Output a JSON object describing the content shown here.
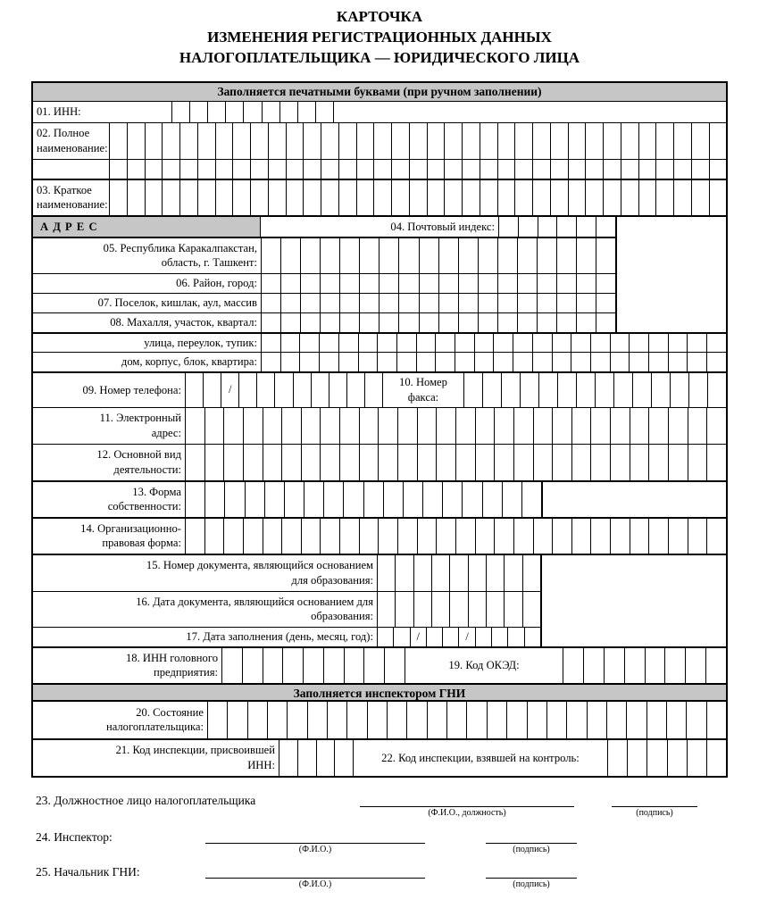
{
  "title": {
    "line1": "КАРТОЧКА",
    "line2": "ИЗМЕНЕНИЯ РЕГИСТРАЦИОННЫХ ДАННЫХ",
    "line3": "НАЛОГОПЛАТЕЛЬЩИКА — ЮРИДИЧЕСКОГО ЛИЦА"
  },
  "bands": {
    "manual": "Заполняется печатными буквами (при ручном заполнении)",
    "inspector": "Заполняется инспектором ГНИ"
  },
  "colors": {
    "band_bg": "#c6c6c6",
    "border": "#000000"
  },
  "rows": {
    "inn": {
      "label": "01. ИНН:",
      "cells": 9
    },
    "full_name": {
      "label1": "02. Полное",
      "label2": "наименование:",
      "cells": 35,
      "extra_cells": 35
    },
    "short_name": {
      "label1": "03. Краткое",
      "label2": "наименование:",
      "cells": 35
    },
    "address_header": {
      "label": "А Д Р Е С"
    },
    "postal": {
      "label": "04. Почтовый индекс:",
      "cells": 6
    },
    "region": {
      "label1": "05. Республика Каракалпакстан,",
      "label2": "область, г. Ташкент:",
      "cells": 18
    },
    "district": {
      "label": "06. Район, город:",
      "cells": 18
    },
    "settlement": {
      "label": "07. Поселок, кишлак, аул, массив",
      "cells": 18
    },
    "mahalla": {
      "label": "08. Махалля, участок, квартал:",
      "cells": 18
    },
    "street": {
      "label": "улица, переулок, тупик:",
      "cells": 24
    },
    "house": {
      "label": "дом, корпус, блок, квартира:",
      "cells": 24
    },
    "phone": {
      "label": "09. Номер телефона:",
      "cells": 11
    },
    "fax": {
      "label1": "10. Номер",
      "label2": "факса:",
      "cells": 14
    },
    "email": {
      "label1": "11. Электронный",
      "label2": "адрес:",
      "cells": 28
    },
    "activity": {
      "label1": "12. Основной вид",
      "label2": "деятельности:",
      "cells": 28
    },
    "ownership": {
      "label1": "13. Форма",
      "label2": "собственности:",
      "cells": 18
    },
    "legal_form": {
      "label1": "14. Организационно-",
      "label2": "правовая форма:",
      "cells": 28
    },
    "doc_number": {
      "label1": "15. Номер документа, являющийся основанием",
      "label2": "для образования:",
      "cells": 9
    },
    "doc_date": {
      "label1": "16. Дата документа, являющийся основанием для",
      "label2": "образования:",
      "cells": 9
    },
    "fill_date": {
      "label": "17. Дата заполнения (день, месяц, год):",
      "cells": 10
    },
    "head_inn": {
      "label1": "18. ИНН головного",
      "label2": "предприятия:",
      "cells": 9
    },
    "oked": {
      "label": "19. Код ОКЭД:",
      "cells": 8
    },
    "status": {
      "label1": "20. Состояние",
      "label2": "налогоплательщика:",
      "cells": 26
    },
    "inspection_inn": {
      "label1": "21. Код инспекции, присвоившей",
      "label2": "ИНН:",
      "cells": 4
    },
    "inspection_control": {
      "label": "22. Код инспекции, взявшей на контроль:",
      "cells": 6
    }
  },
  "signatures": {
    "official": {
      "label": "23. Должностное лицо налогоплательщика",
      "caption1": "(Ф.И.О., должность)",
      "caption2": "(подпись)"
    },
    "inspector": {
      "label": "24. Инспектор:",
      "caption1": "(Ф.И.О.)",
      "caption2": "(подпись)"
    },
    "chief": {
      "label": "25. Начальник ГНИ:",
      "caption1": "(Ф.И.О.)",
      "caption2": "(подпись)"
    }
  },
  "misc": {
    "slash": "/"
  }
}
